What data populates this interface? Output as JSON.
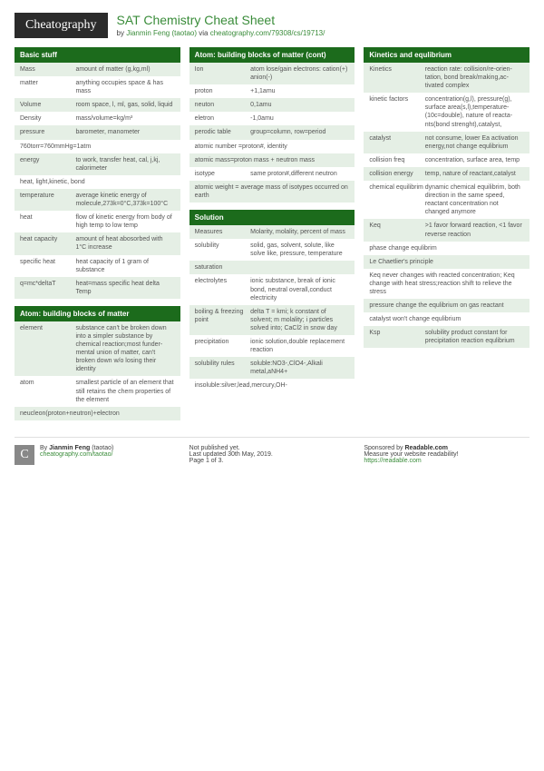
{
  "header": {
    "logo": "Cheatography",
    "title": "SAT Chemistry Cheat Sheet",
    "by": "by ",
    "author": "Jianmin Feng (taotao)",
    "via": " via ",
    "url": "cheatography.com/79308/cs/19713/"
  },
  "colors": {
    "section_header_bg": "#1c6b1c",
    "alt_row_bg": "#e5efe5",
    "link": "#3a8c3a"
  },
  "columns": [
    {
      "sections": [
        {
          "title": "Basic stuff",
          "rows": [
            {
              "t": "Mass",
              "d": "amount of matter (g,kg,ml)",
              "alt": true
            },
            {
              "t": "matter",
              "d": "anything occupies space & has mass",
              "alt": false
            },
            {
              "t": "Volume",
              "d": "room space, l, ml, gas, solid, liquid",
              "alt": true
            },
            {
              "t": "Density",
              "d": "mass/volume=kg/m³",
              "alt": false
            },
            {
              "t": "pressure",
              "d": "barometer, manometer",
              "alt": true
            },
            {
              "t": "",
              "d": "760torr=760mmHg=1atm",
              "alt": false,
              "full": true
            },
            {
              "t": "energy",
              "d": "to work, transfer heat, cal, j,kj, calorimeter",
              "alt": true
            },
            {
              "t": "",
              "d": "heat, light,kinetic, bond",
              "alt": false,
              "full": true
            },
            {
              "t": "temper­ature",
              "d": "average kinetic energy of molecule,273k=0°C,373k=10­0°C",
              "alt": true
            },
            {
              "t": "heat",
              "d": "flow of kinetic energy from body of high temp to low temp",
              "alt": false
            },
            {
              "t": "heat capacity",
              "d": "amount of heat abosorbed with 1°C increase",
              "alt": true
            },
            {
              "t": "specific heat",
              "d": "heat capacity of 1 gram of substance",
              "alt": false
            },
            {
              "t": "q=mc*d­eltaT",
              "d": "heat=mass specific heat delta Temp",
              "alt": true
            }
          ]
        },
        {
          "title": "Atom: building blocks of matter",
          "rows": [
            {
              "t": "element",
              "d": "substance can't be broken down into a simpler substance by chemical reaction;most funder­mental union of matter, can't broken down w/o losing their identity",
              "alt": true
            },
            {
              "t": "atom",
              "d": "smallest particle of an element that still retains the chem properties of the element",
              "alt": false
            },
            {
              "t": "",
              "d": "neucleon(proton+neutron)+el­ectron",
              "alt": true,
              "full": true
            }
          ]
        }
      ]
    },
    {
      "sections": [
        {
          "title": "Atom: building blocks of matter (cont)",
          "rows": [
            {
              "t": "Ion",
              "d": "atom lose/gain electrons: cation(+) anion(-)",
              "alt": true
            },
            {
              "t": "proton",
              "d": "+1,1amu",
              "alt": false
            },
            {
              "t": "neuton",
              "d": "0,1amu",
              "alt": true
            },
            {
              "t": "eletron",
              "d": "-1,0amu",
              "alt": false
            },
            {
              "t": "perodic table",
              "d": "group=column, row=period",
              "alt": true
            },
            {
              "t": "",
              "d": "atomic number =proton#, identity",
              "alt": false,
              "full": true
            },
            {
              "t": "",
              "d": "atomic mass=proton mass + neutron mass",
              "alt": true,
              "full": true
            },
            {
              "t": "isotype",
              "d": "same proton#,different neutron",
              "alt": false
            },
            {
              "t": "",
              "d": "atomic weight = average mass of isotypes occurred on earth",
              "alt": true,
              "full": true
            }
          ]
        },
        {
          "title": "Solution",
          "rows": [
            {
              "t": "Measures",
              "d": "Molarity, molality, percent of mass",
              "alt": true
            },
            {
              "t": "solubility",
              "d": "solid, gas, solvent, solute, like solve like, pressure, temper­ature",
              "alt": false
            },
            {
              "t": "saturation",
              "d": "",
              "alt": true
            },
            {
              "t": "electr­olytes",
              "d": "ionic substance, break of ionic bond, neutral overall,conduct electricity",
              "alt": false
            },
            {
              "t": "boiling & freezing point",
              "d": "delta T = kmi; k constant of solvent; m molality; i particles solved into; CaCl2 in snow day",
              "alt": true
            },
            {
              "t": "precip­itation",
              "d": "ionic solution,double replac­ement reaction",
              "alt": false
            },
            {
              "t": "solubility rules",
              "d": "soluble:NO3-,ClO4-,Alkali metal,aNH4+",
              "alt": true
            },
            {
              "t": "",
              "d": "insoluble:silver,lead,mercu­ry,OH-",
              "alt": false,
              "full": true
            }
          ]
        }
      ]
    },
    {
      "sections": [
        {
          "title": "Kinetics and equlibrium",
          "rows": [
            {
              "t": "Kinetics",
              "d": "reaction rate: collision/re-orien­tation, bond break/making,ac­tivated complex",
              "alt": true
            },
            {
              "t": "kinetic factors",
              "d": "concentration(g,l), pressure(g), surface area(s,l),temperature­(10c=double), nature of reacta­nts(bond strenght),catalyst,",
              "alt": false
            },
            {
              "t": "catalyst",
              "d": "not consume, lower Ea activation energy,not change equlibrium",
              "alt": true
            },
            {
              "t": "collision freq",
              "d": "concentration, surface area, temp",
              "alt": false
            },
            {
              "t": "collision energy",
              "d": "temp, nature of reactant,cat­alyst",
              "alt": true
            },
            {
              "t": "chemical equili­brim",
              "d": "dynamic chemical equilibrim, both direction in the same speed, reactant concentration not changed anymore",
              "alt": false
            },
            {
              "t": "Keq",
              "d": ">1 favor forward reaction, <1 favor reverse reaction",
              "alt": true
            },
            {
              "t": "",
              "d": "phase change equlibrim",
              "alt": false,
              "full": true
            },
            {
              "t": "",
              "d": "Le Chaetlier's principle",
              "alt": true,
              "full": true
            },
            {
              "t": "",
              "d": "Keq never changes with reacted concentra­tion; Keq change with heat stress;reaction shift to relieve the stress",
              "alt": false,
              "full": true
            },
            {
              "t": "",
              "d": "pressure change the equlibrium on gas reactant",
              "alt": true,
              "full": true
            },
            {
              "t": "",
              "d": "catalyst won't change equlibrium",
              "alt": false,
              "full": true
            },
            {
              "t": "Ksp",
              "d": "solubility product constant for precipitation reaction equlibrium",
              "alt": true
            }
          ]
        }
      ]
    }
  ],
  "footer": {
    "col1": {
      "by": "By ",
      "author": "Jianmin Feng",
      "handle": " (taotao)",
      "link": "cheatography.com/taotao/"
    },
    "col2": {
      "l1": "Not published yet.",
      "l2": "Last updated 30th May, 2019.",
      "l3": "Page 1 of 3."
    },
    "col3": {
      "l1a": "Sponsored by ",
      "l1b": "Readable.com",
      "l2": "Measure your website readability!",
      "l3": "https://readable.com"
    }
  }
}
